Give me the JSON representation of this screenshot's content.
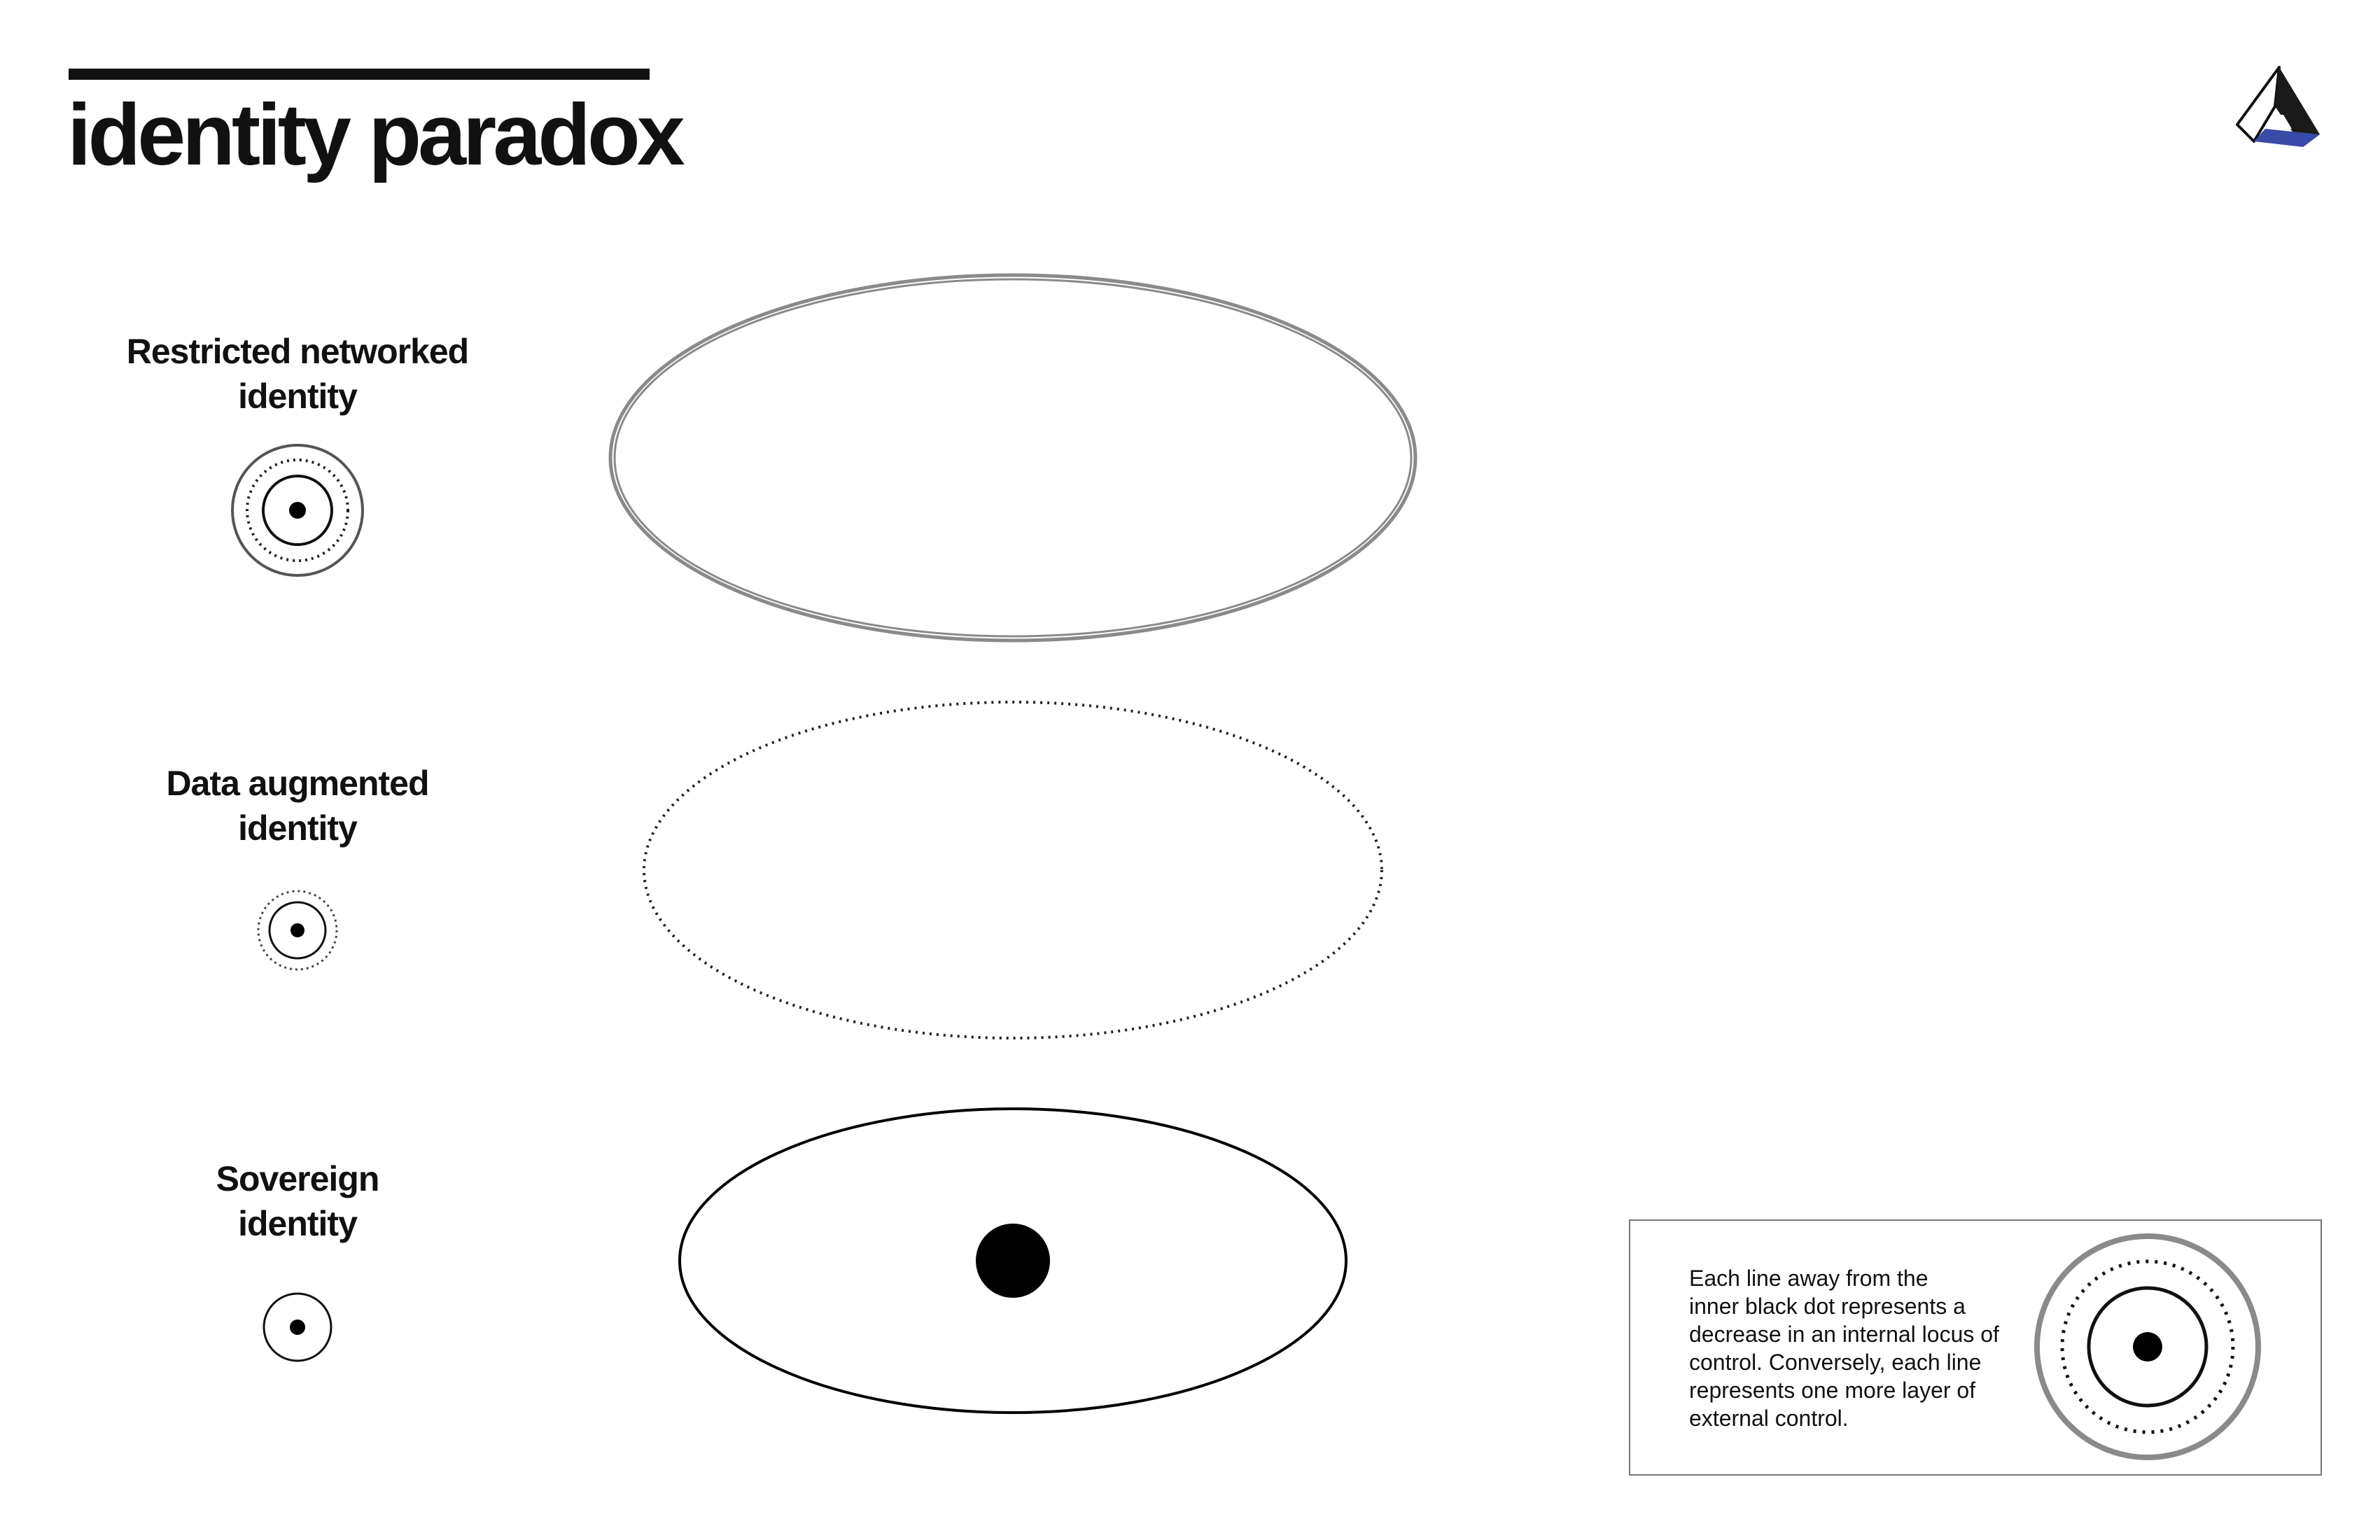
{
  "header": {
    "title": "identity paradox"
  },
  "logo": {
    "icon": "triangle-logo-icon",
    "colors": {
      "face": "#ffffff",
      "accent": "#3a4aa8",
      "outline": "#111111"
    }
  },
  "rows": [
    {
      "id": "restricted-networked",
      "label_lines": [
        "Restricted networked",
        "identity"
      ],
      "ring_styles": [
        "solid",
        "dotted",
        "solid-gray"
      ],
      "outer_line_style": "double-gray"
    },
    {
      "id": "data-augmented",
      "label_lines": [
        "Data augmented",
        "identity"
      ],
      "ring_styles": [
        "solid",
        "dotted"
      ],
      "outer_line_style": "dotted"
    },
    {
      "id": "sovereign",
      "label_lines": [
        "Sovereign",
        "identity"
      ],
      "ring_styles": [
        "solid"
      ],
      "outer_line_style": "solid",
      "shows_center_dot": true
    }
  ],
  "legend": {
    "text_lines": [
      "Each line away from the",
      "inner black dot represents a",
      "decrease in an internal locus of",
      "control. Conversely, each line",
      "represents one more layer of",
      "external control."
    ],
    "ring_styles": [
      "solid",
      "dotted",
      "solid-gray"
    ]
  }
}
